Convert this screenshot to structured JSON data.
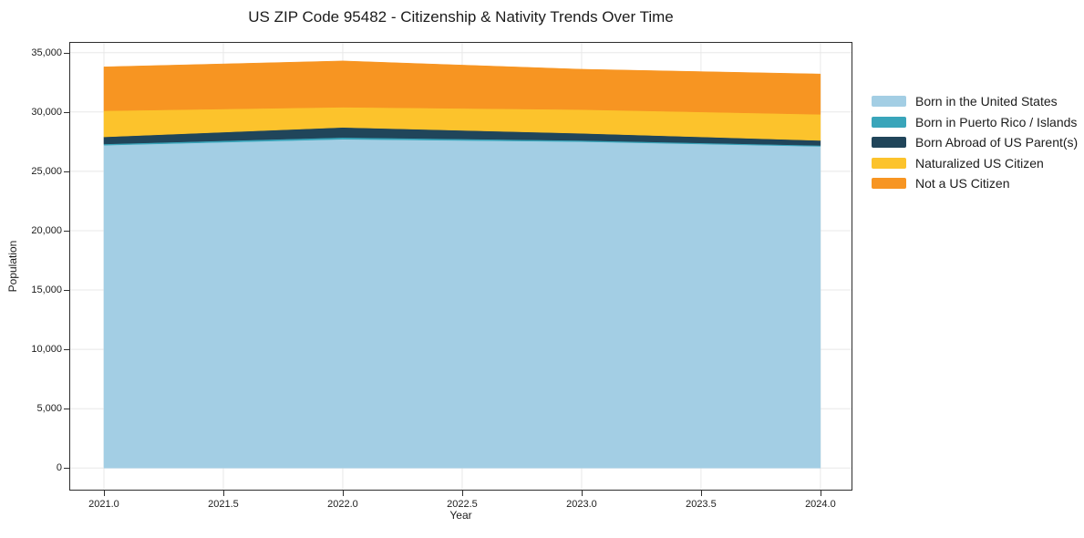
{
  "colors": {
    "background": "#ffffff",
    "grid": "#e8e8e8",
    "axis": "#2e2e2e",
    "text": "#1c1c1c"
  },
  "chart_data": {
    "type": "area",
    "stacked": true,
    "title": "US ZIP Code 95482 - Citizenship & Nativity Trends Over Time",
    "xlabel": "Year",
    "ylabel": "Population",
    "x": [
      2021,
      2022,
      2023,
      2024
    ],
    "series": [
      {
        "name": "Born in the United States",
        "color": "#a3cee4",
        "values": [
          27200,
          27700,
          27500,
          27100
        ]
      },
      {
        "name": "Born in Puerto Rico / Islands",
        "color": "#39a5ba",
        "values": [
          100,
          150,
          100,
          80
        ]
      },
      {
        "name": "Born Abroad of US Parent(s)",
        "color": "#20455a",
        "values": [
          600,
          850,
          600,
          420
        ]
      },
      {
        "name": "Naturalized US Citizen",
        "color": "#fcc32c",
        "values": [
          2200,
          1700,
          2000,
          2200
        ]
      },
      {
        "name": "Not a US Citizen",
        "color": "#f79522",
        "values": [
          3700,
          3900,
          3400,
          3400
        ]
      }
    ],
    "totals": [
      33800,
      34300,
      33600,
      33200
    ],
    "xticks": {
      "values": [
        2021.0,
        2021.5,
        2022.0,
        2022.5,
        2023.0,
        2023.5,
        2024.0
      ],
      "labels": [
        "2021.0",
        "2021.5",
        "2022.0",
        "2022.5",
        "2023.0",
        "2023.5",
        "2024.0"
      ]
    },
    "yticks": {
      "values": [
        0,
        5000,
        10000,
        15000,
        20000,
        25000,
        30000,
        35000
      ],
      "labels": [
        "0",
        "5,000",
        "10,000",
        "15,000",
        "20,000",
        "25,000",
        "30,000",
        "35,000"
      ]
    },
    "xlim": [
      2020.855,
      2024.134
    ],
    "ylim": [
      -1900,
      35900
    ],
    "grid": true,
    "legend_position": "outside-right"
  }
}
